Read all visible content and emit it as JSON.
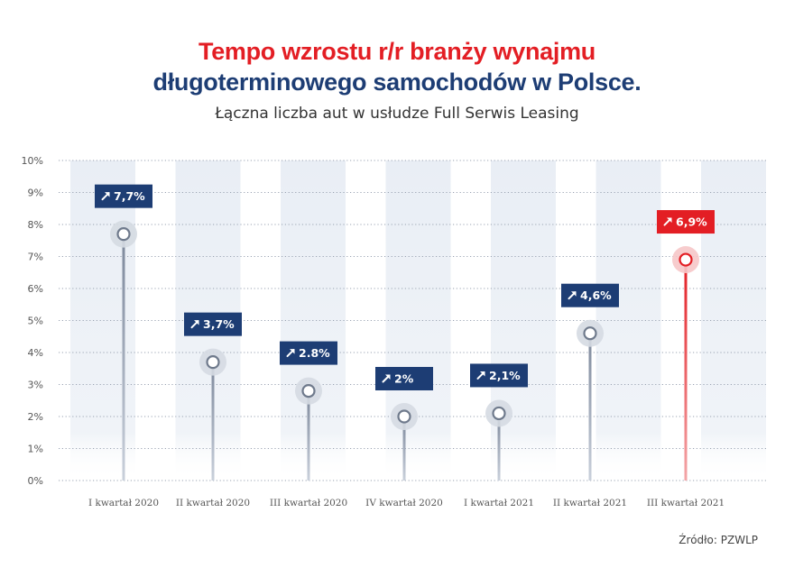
{
  "chart_data": {
    "type": "lollipop",
    "title_line1": "Tempo wzrostu r/r branży wynajmu",
    "title_line2": "długoterminowego samochodów w Polsce.",
    "subtitle": "Łączna liczba aut w usłudze Full Serwis Leasing",
    "source": "Źródło: PZWLP",
    "ylim": [
      0,
      10
    ],
    "y_ticks": [
      "0%",
      "1%",
      "2%",
      "3%",
      "4%",
      "5%",
      "6%",
      "7%",
      "8%",
      "9%",
      "10%"
    ],
    "categories": [
      "I kwartał 2020",
      "II kwartał 2020",
      "III kwartał 2020",
      "IV kwartał 2020",
      "I kwartał 2021",
      "II kwartał 2021",
      "III kwartał 2021"
    ],
    "values": [
      7.7,
      3.7,
      2.8,
      2.0,
      2.1,
      4.6,
      6.9
    ],
    "value_labels": [
      "7,7%",
      "3,7%",
      "2.8%",
      "2%",
      "2,1%",
      "4,6%",
      "6,9%"
    ],
    "highlight_index": 6,
    "colors": {
      "primary": "#1d3d74",
      "highlight": "#e31e24",
      "stem": "#8e99ab",
      "band": "#e9eef5"
    }
  }
}
